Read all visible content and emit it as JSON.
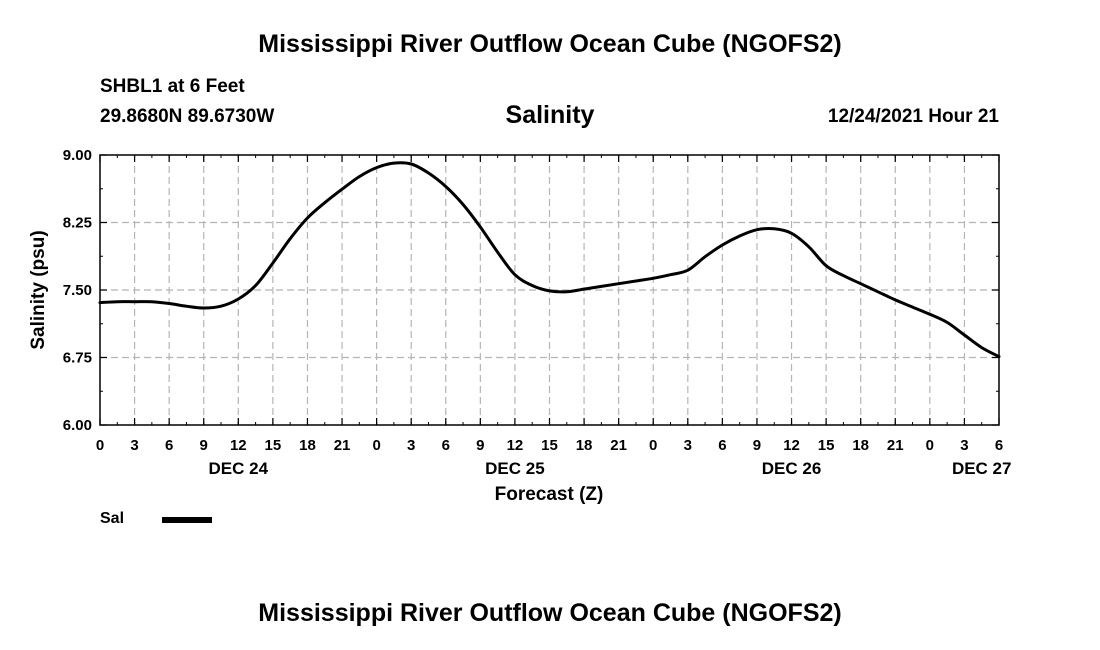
{
  "main_title": "Mississippi River Outflow Ocean Cube (NGOFS2)",
  "bottom_title": "Mississippi River Outflow Ocean Cube (NGOFS2)",
  "station_label": "SHBL1 at 6 Feet",
  "coordinates": "29.8680N  89.6730W",
  "date_hour": "12/24/2021 Hour 21",
  "legend": {
    "label": "Sal",
    "color": "#000000"
  },
  "chart_data": {
    "type": "line",
    "title": "Salinity",
    "ylabel": "Salinity (psu)",
    "xlabel": "Forecast (Z)",
    "ylim": [
      6.0,
      9.0
    ],
    "yticks": [
      "9.00",
      "8.25",
      "7.50",
      "6.75",
      "6.00"
    ],
    "ytick_values": [
      9.0,
      8.25,
      7.5,
      6.75,
      6.0
    ],
    "xlim_hours": [
      0,
      78
    ],
    "xtick_labels": [
      "0",
      "3",
      "6",
      "9",
      "12",
      "15",
      "18",
      "21",
      "0",
      "3",
      "6",
      "9",
      "12",
      "15",
      "18",
      "21",
      "0",
      "3",
      "6",
      "9",
      "12",
      "15",
      "18",
      "21",
      "0",
      "3",
      "6"
    ],
    "date_labels": [
      {
        "label": "DEC 24",
        "hour": 12
      },
      {
        "label": "DEC 25",
        "hour": 36
      },
      {
        "label": "DEC 26",
        "hour": 60
      },
      {
        "label": "DEC 27",
        "hour": 76.5
      }
    ],
    "grid": true,
    "series": [
      {
        "name": "Sal",
        "x_hours": [
          0,
          1.5,
          3,
          4.5,
          6,
          7.5,
          9,
          10.5,
          12,
          13.5,
          15,
          16.5,
          18,
          19.5,
          21,
          22.5,
          24,
          25.5,
          27,
          28.5,
          30,
          31.5,
          33,
          34.5,
          36,
          37.5,
          39,
          40.5,
          42,
          43.5,
          45,
          46.5,
          48,
          49.5,
          51,
          52.5,
          54,
          55.5,
          57,
          58.5,
          60,
          61.5,
          63,
          64.5,
          66,
          67.5,
          69,
          70.5,
          72,
          73.5,
          75,
          76.5,
          78
        ],
        "values": [
          7.36,
          7.37,
          7.37,
          7.37,
          7.35,
          7.32,
          7.3,
          7.32,
          7.4,
          7.55,
          7.8,
          8.07,
          8.3,
          8.47,
          8.62,
          8.76,
          8.86,
          8.91,
          8.9,
          8.8,
          8.65,
          8.45,
          8.2,
          7.92,
          7.67,
          7.55,
          7.49,
          7.48,
          7.51,
          7.54,
          7.57,
          7.6,
          7.63,
          7.67,
          7.72,
          7.87,
          8.0,
          8.1,
          8.17,
          8.18,
          8.13,
          7.98,
          7.77,
          7.66,
          7.57,
          7.48,
          7.39,
          7.31,
          7.23,
          7.14,
          7.0,
          6.86,
          6.76
        ]
      }
    ]
  }
}
